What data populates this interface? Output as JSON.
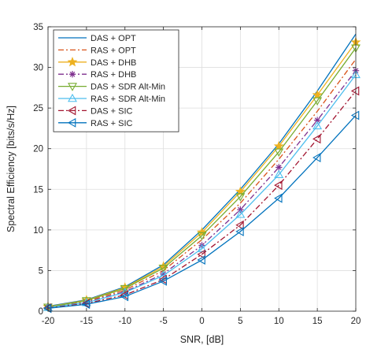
{
  "chart_data": {
    "type": "line",
    "title": "",
    "xlabel": "SNR, [dB]",
    "ylabel": "Spectral Efficiency [bits/s/Hz]",
    "xlim": [
      -20,
      20
    ],
    "ylim": [
      0,
      35
    ],
    "xticks": [
      "-20",
      "-15",
      "-10",
      "-5",
      "0",
      "5",
      "10",
      "15",
      "20"
    ],
    "yticks": [
      "0",
      "5",
      "10",
      "15",
      "20",
      "25",
      "30",
      "35"
    ],
    "grid": true,
    "legend_position": "top-left",
    "x": [
      -20,
      -15,
      -10,
      -5,
      0,
      5,
      10,
      15,
      20
    ],
    "series": [
      {
        "name": "DAS + OPT",
        "color": "#0072BD",
        "dash": "solid",
        "marker": "none",
        "values": [
          0.6,
          1.4,
          3.0,
          5.7,
          10.0,
          15.0,
          20.6,
          27.1,
          34.1
        ]
      },
      {
        "name": "RAS + OPT",
        "color": "#D95319",
        "dash": "dashdot",
        "marker": "none",
        "values": [
          0.5,
          1.2,
          2.6,
          5.0,
          8.8,
          13.3,
          18.7,
          24.6,
          31.0
        ]
      },
      {
        "name": "DAS + DHB",
        "color": "#EDB120",
        "dash": "solid",
        "marker": "star",
        "values": [
          0.55,
          1.35,
          2.9,
          5.5,
          9.7,
          14.7,
          20.3,
          26.6,
          33.1
        ]
      },
      {
        "name": "RAS + DHB",
        "color": "#7E2F8E",
        "dash": "dashdot",
        "marker": "asterisk",
        "values": [
          0.45,
          1.1,
          2.4,
          4.6,
          8.1,
          12.5,
          17.7,
          23.5,
          29.6
        ]
      },
      {
        "name": "DAS + SDR Alt-Min",
        "color": "#77AC30",
        "dash": "solid",
        "marker": "triangle-down",
        "values": [
          0.5,
          1.3,
          2.8,
          5.3,
          9.3,
          14.1,
          19.6,
          25.9,
          32.4
        ]
      },
      {
        "name": "RAS + SDR Alt-Min",
        "color": "#4DBEEE",
        "dash": "solid",
        "marker": "triangle-up",
        "values": [
          0.45,
          1.05,
          2.3,
          4.4,
          7.7,
          11.9,
          16.8,
          22.8,
          29.1
        ]
      },
      {
        "name": "DAS + SIC",
        "color": "#A2142F",
        "dash": "dashdot",
        "marker": "triangle-left",
        "values": [
          0.4,
          0.95,
          2.0,
          3.9,
          7.0,
          10.6,
          15.5,
          21.2,
          27.1
        ]
      },
      {
        "name": "RAS + SIC",
        "color": "#0072BD",
        "dash": "solid",
        "marker": "triangle-left",
        "values": [
          0.35,
          0.85,
          1.8,
          3.7,
          6.3,
          9.8,
          13.9,
          18.9,
          24.1
        ]
      }
    ]
  }
}
